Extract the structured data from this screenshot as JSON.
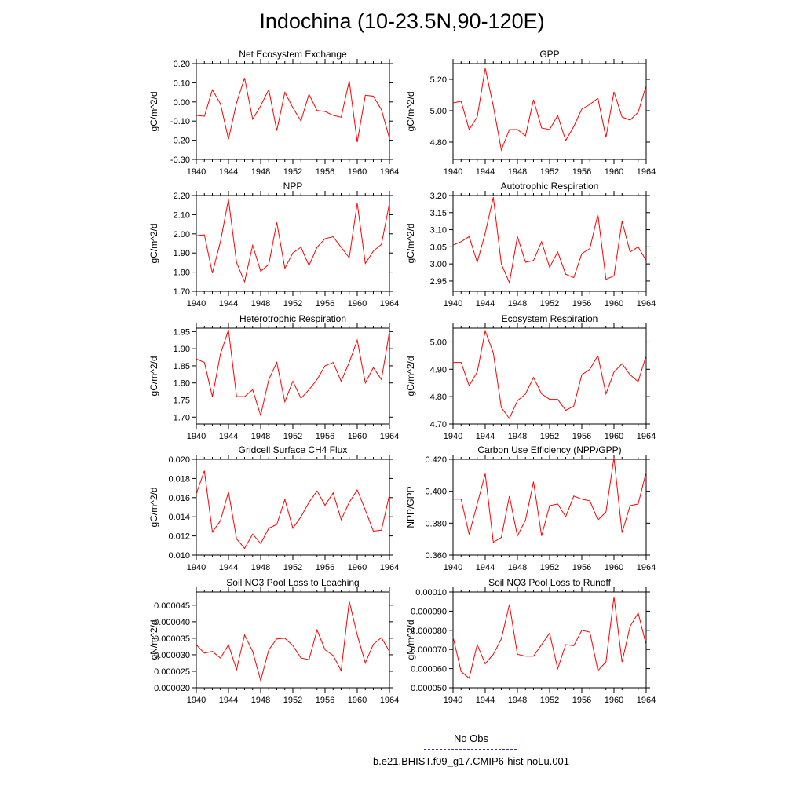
{
  "page": {
    "title": "Indochina (10-23.5N,90-120E)"
  },
  "legend": {
    "obs_label": "No Obs",
    "obs_color": "#3333cc",
    "model_label": "b.e21.BHIST.f09_g17.CMIP6-hist-noLu.001",
    "model_color": "#ff0000"
  },
  "chart_data": [
    {
      "type": "line",
      "title": "Net Ecosystem Exchange",
      "ylabel": "gC/m^2/d",
      "xlabel": "",
      "xlim": [
        1940,
        1964
      ],
      "ylim": [
        -0.3,
        0.2
      ],
      "yticks": [
        "-0.30",
        "-0.20",
        "-0.10",
        "0.00",
        "0.10",
        "0.20"
      ],
      "xticks": [
        "1940",
        "1944",
        "1948",
        "1952",
        "1956",
        "1960",
        "1964"
      ],
      "x": [
        1940,
        1941,
        1942,
        1943,
        1944,
        1945,
        1946,
        1947,
        1948,
        1949,
        1950,
        1951,
        1952,
        1953,
        1954,
        1955,
        1956,
        1957,
        1958,
        1959,
        1960,
        1961,
        1962,
        1963,
        1964
      ],
      "series": [
        {
          "values": [
            -0.07,
            -0.075,
            0.063,
            -0.01,
            -0.195,
            -0.005,
            0.125,
            -0.09,
            -0.02,
            0.065,
            -0.15,
            0.05,
            -0.03,
            -0.1,
            0.04,
            -0.045,
            -0.05,
            -0.07,
            -0.08,
            0.11,
            -0.21,
            0.035,
            0.03,
            -0.04,
            -0.19
          ],
          "color": "#ff0000"
        }
      ]
    },
    {
      "type": "line",
      "title": "GPP",
      "ylabel": "gC/m^2/d",
      "xlabel": "",
      "xlim": [
        1940,
        1964
      ],
      "ylim": [
        4.69,
        5.3
      ],
      "yticks": [
        "4.80",
        "5.00",
        "5.20"
      ],
      "xticks": [
        "1940",
        "1944",
        "1948",
        "1952",
        "1956",
        "1960",
        "1964"
      ],
      "x": [
        1940,
        1941,
        1942,
        1943,
        1944,
        1945,
        1946,
        1947,
        1948,
        1949,
        1950,
        1951,
        1952,
        1953,
        1954,
        1955,
        1956,
        1957,
        1958,
        1959,
        1960,
        1961,
        1962,
        1963,
        1964
      ],
      "series": [
        {
          "values": [
            5.05,
            5.06,
            4.88,
            4.96,
            5.27,
            5.03,
            4.75,
            4.88,
            4.88,
            4.84,
            5.07,
            4.89,
            4.88,
            4.97,
            4.81,
            4.9,
            5.01,
            5.04,
            5.08,
            4.83,
            5.12,
            4.96,
            4.94,
            4.99,
            5.16
          ],
          "color": "#ff0000"
        }
      ]
    },
    {
      "type": "line",
      "title": "NPP",
      "ylabel": "gC/m^2/d",
      "xlabel": "",
      "xlim": [
        1940,
        1964
      ],
      "ylim": [
        1.7,
        2.2
      ],
      "yticks": [
        "1.70",
        "1.80",
        "1.90",
        "2.00",
        "2.10",
        "2.20"
      ],
      "xticks": [
        "1940",
        "1944",
        "1948",
        "1952",
        "1956",
        "1960",
        "1964"
      ],
      "x": [
        1940,
        1941,
        1942,
        1943,
        1944,
        1945,
        1946,
        1947,
        1948,
        1949,
        1950,
        1951,
        1952,
        1953,
        1954,
        1955,
        1956,
        1957,
        1958,
        1959,
        1960,
        1961,
        1962,
        1963,
        1964
      ],
      "series": [
        {
          "values": [
            1.99,
            1.995,
            1.795,
            1.96,
            2.18,
            1.85,
            1.75,
            1.94,
            1.805,
            1.84,
            2.06,
            1.82,
            1.9,
            1.93,
            1.835,
            1.93,
            1.975,
            1.985,
            1.93,
            1.875,
            2.16,
            1.845,
            1.91,
            1.945,
            2.16
          ],
          "color": "#ff0000"
        }
      ]
    },
    {
      "type": "line",
      "title": "Autotrophic Respiration",
      "ylabel": "gC/m^2/d",
      "xlabel": "",
      "xlim": [
        1940,
        1964
      ],
      "ylim": [
        2.92,
        3.2
      ],
      "yticks": [
        "2.95",
        "3.00",
        "3.05",
        "3.10",
        "3.15",
        "3.20"
      ],
      "xticks": [
        "1940",
        "1944",
        "1948",
        "1952",
        "1956",
        "1960",
        "1964"
      ],
      "x": [
        1940,
        1941,
        1942,
        1943,
        1944,
        1945,
        1946,
        1947,
        1948,
        1949,
        1950,
        1951,
        1952,
        1953,
        1954,
        1955,
        1956,
        1957,
        1958,
        1959,
        1960,
        1961,
        1962,
        1963,
        1964
      ],
      "series": [
        {
          "values": [
            3.055,
            3.065,
            3.08,
            3.005,
            3.09,
            3.195,
            3.0,
            2.945,
            3.08,
            3.005,
            3.01,
            3.065,
            2.99,
            3.035,
            2.97,
            2.96,
            3.03,
            3.045,
            3.145,
            2.955,
            2.965,
            3.125,
            3.035,
            3.05,
            3.01
          ],
          "color": "#ff0000"
        }
      ]
    },
    {
      "type": "line",
      "title": "Heterotrophic Respiration",
      "ylabel": "gC/m^2/d",
      "xlabel": "",
      "xlim": [
        1940,
        1964
      ],
      "ylim": [
        1.68,
        1.96
      ],
      "yticks": [
        "1.70",
        "1.75",
        "1.80",
        "1.85",
        "1.90",
        "1.95"
      ],
      "xticks": [
        "1940",
        "1944",
        "1948",
        "1952",
        "1956",
        "1960",
        "1964"
      ],
      "x": [
        1940,
        1941,
        1942,
        1943,
        1944,
        1945,
        1946,
        1947,
        1948,
        1949,
        1950,
        1951,
        1952,
        1953,
        1954,
        1955,
        1956,
        1957,
        1958,
        1959,
        1960,
        1961,
        1962,
        1963,
        1964
      ],
      "series": [
        {
          "values": [
            1.87,
            1.86,
            1.76,
            1.885,
            1.955,
            1.76,
            1.76,
            1.78,
            1.705,
            1.81,
            1.86,
            1.745,
            1.805,
            1.755,
            1.78,
            1.81,
            1.85,
            1.86,
            1.805,
            1.86,
            1.925,
            1.8,
            1.845,
            1.81,
            1.95
          ],
          "color": "#ff0000"
        }
      ]
    },
    {
      "type": "line",
      "title": "Ecosystem Respiration",
      "ylabel": "gC/m^2/d",
      "xlabel": "",
      "xlim": [
        1940,
        1964
      ],
      "ylim": [
        4.7,
        5.05
      ],
      "yticks": [
        "4.70",
        "4.80",
        "4.90",
        "5.00"
      ],
      "xticks": [
        "1940",
        "1944",
        "1948",
        "1952",
        "1956",
        "1960",
        "1964"
      ],
      "x": [
        1940,
        1941,
        1942,
        1943,
        1944,
        1945,
        1946,
        1947,
        1948,
        1949,
        1950,
        1951,
        1952,
        1953,
        1954,
        1955,
        1956,
        1957,
        1958,
        1959,
        1960,
        1961,
        1962,
        1963,
        1964
      ],
      "series": [
        {
          "values": [
            4.925,
            4.925,
            4.84,
            4.89,
            5.04,
            4.96,
            4.76,
            4.72,
            4.785,
            4.81,
            4.87,
            4.81,
            4.79,
            4.79,
            4.75,
            4.765,
            4.88,
            4.9,
            4.95,
            4.81,
            4.89,
            4.92,
            4.88,
            4.855,
            4.95
          ],
          "color": "#ff0000"
        }
      ]
    },
    {
      "type": "line",
      "title": "Gridcell Surface CH4 Flux",
      "ylabel": "gC/m^2/d",
      "xlabel": "",
      "xlim": [
        1940,
        1964
      ],
      "ylim": [
        0.01,
        0.02
      ],
      "yticks": [
        "0.010",
        "0.012",
        "0.014",
        "0.016",
        "0.018",
        "0.020"
      ],
      "xticks": [
        "1940",
        "1944",
        "1948",
        "1952",
        "1956",
        "1960",
        "1964"
      ],
      "x": [
        1940,
        1941,
        1942,
        1943,
        1944,
        1945,
        1946,
        1947,
        1948,
        1949,
        1950,
        1951,
        1952,
        1953,
        1954,
        1955,
        1956,
        1957,
        1958,
        1959,
        1960,
        1961,
        1962,
        1963,
        1964
      ],
      "series": [
        {
          "values": [
            0.0164,
            0.0188,
            0.0124,
            0.0136,
            0.0166,
            0.0117,
            0.0107,
            0.0122,
            0.0112,
            0.0128,
            0.0132,
            0.0158,
            0.0128,
            0.014,
            0.0155,
            0.0167,
            0.0152,
            0.0165,
            0.0137,
            0.0155,
            0.0168,
            0.0147,
            0.0125,
            0.0126,
            0.0163
          ],
          "color": "#ff0000"
        }
      ]
    },
    {
      "type": "line",
      "title": "Carbon Use Efficiency (NPP/GPP)",
      "ylabel": "NPP/GPP",
      "xlabel": "",
      "xlim": [
        1940,
        1964
      ],
      "ylim": [
        0.36,
        0.42
      ],
      "yticks": [
        "0.360",
        "0.380",
        "0.400",
        "0.420"
      ],
      "xticks": [
        "1940",
        "1944",
        "1948",
        "1952",
        "1956",
        "1960",
        "1964"
      ],
      "x": [
        1940,
        1941,
        1942,
        1943,
        1944,
        1945,
        1946,
        1947,
        1948,
        1949,
        1950,
        1951,
        1952,
        1953,
        1954,
        1955,
        1956,
        1957,
        1958,
        1959,
        1960,
        1961,
        1962,
        1963,
        1964
      ],
      "series": [
        {
          "values": [
            0.395,
            0.395,
            0.373,
            0.392,
            0.411,
            0.368,
            0.371,
            0.397,
            0.372,
            0.382,
            0.406,
            0.372,
            0.391,
            0.392,
            0.384,
            0.397,
            0.395,
            0.394,
            0.382,
            0.387,
            0.421,
            0.374,
            0.391,
            0.392,
            0.412
          ],
          "color": "#ff0000"
        }
      ]
    },
    {
      "type": "line",
      "title": "Soil NO3 Pool Loss to Leaching",
      "ylabel": "gN/m^2/d",
      "xlabel": "",
      "xlim": [
        1940,
        1964
      ],
      "ylim": [
        2e-05,
        4.9e-05
      ],
      "yticks": [
        "0.000020",
        "0.000025",
        "0.000030",
        "0.000035",
        "0.000040",
        "0.000045"
      ],
      "xticks": [
        "1940",
        "1944",
        "1948",
        "1952",
        "1956",
        "1960",
        "1964"
      ],
      "x": [
        1940,
        1941,
        1942,
        1943,
        1944,
        1945,
        1946,
        1947,
        1948,
        1949,
        1950,
        1951,
        1952,
        1953,
        1954,
        1955,
        1956,
        1957,
        1958,
        1959,
        1960,
        1961,
        1962,
        1963,
        1964
      ],
      "series": [
        {
          "values": [
            3.3e-05,
            3.05e-05,
            3.1e-05,
            2.9e-05,
            3.3e-05,
            2.55e-05,
            3.6e-05,
            3.1e-05,
            2.22e-05,
            3.15e-05,
            3.48e-05,
            3.5e-05,
            3.28e-05,
            2.9e-05,
            2.85e-05,
            3.75e-05,
            3.15e-05,
            2.98e-05,
            2.52e-05,
            4.62e-05,
            3.6e-05,
            2.75e-05,
            3.32e-05,
            3.52e-05,
            3.1e-05
          ],
          "color": "#ff0000"
        }
      ]
    },
    {
      "type": "line",
      "title": "Soil NO3 Pool Loss to Runoff",
      "ylabel": "gN/m^2/d",
      "xlabel": "",
      "xlim": [
        1940,
        1964
      ],
      "ylim": [
        5e-05,
        0.0001
      ],
      "yticks": [
        "0.000050",
        "0.000060",
        "0.000070",
        "0.000080",
        "0.000090",
        "0.00010"
      ],
      "xticks": [
        "1940",
        "1944",
        "1948",
        "1952",
        "1956",
        "1960",
        "1964"
      ],
      "x": [
        1940,
        1941,
        1942,
        1943,
        1944,
        1945,
        1946,
        1947,
        1948,
        1949,
        1950,
        1951,
        1952,
        1953,
        1954,
        1955,
        1956,
        1957,
        1958,
        1959,
        1960,
        1961,
        1962,
        1963,
        1964
      ],
      "series": [
        {
          "values": [
            7.65e-05,
            5.85e-05,
            5.5e-05,
            7.25e-05,
            6.25e-05,
            6.75e-05,
            7.55e-05,
            9.35e-05,
            6.75e-05,
            6.65e-05,
            6.65e-05,
            7.25e-05,
            7.85e-05,
            6e-05,
            7.25e-05,
            7.2e-05,
            8e-05,
            7.9e-05,
            5.9e-05,
            6.35e-05,
            9.75e-05,
            6.35e-05,
            8.2e-05,
            8.9e-05,
            7.25e-05
          ],
          "color": "#ff0000"
        }
      ]
    }
  ]
}
